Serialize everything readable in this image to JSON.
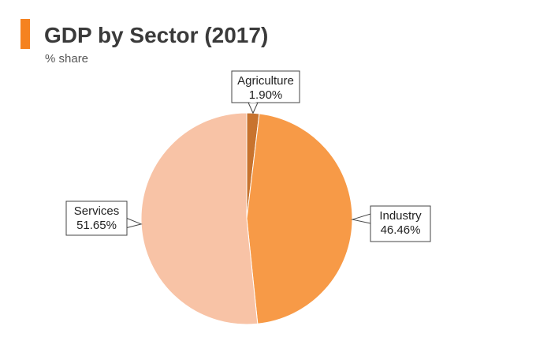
{
  "header": {
    "title": "GDP by Sector (2017)",
    "subtitle": "% share",
    "accent_color": "#f58220"
  },
  "chart_data": {
    "type": "pie",
    "title": "GDP by Sector (2017)",
    "subtitle": "% share",
    "slices": [
      {
        "name": "Agriculture",
        "value": 1.9,
        "label": "1.90%",
        "color": "#c8732e"
      },
      {
        "name": "Industry",
        "value": 46.46,
        "label": "46.46%",
        "color": "#f79a47"
      },
      {
        "name": "Services",
        "value": 51.65,
        "label": "51.65%",
        "color": "#f8c3a6"
      }
    ],
    "start_angle": "12 o'clock",
    "direction": "clockwise",
    "legend": "none",
    "data_labels": "callout boxes"
  }
}
